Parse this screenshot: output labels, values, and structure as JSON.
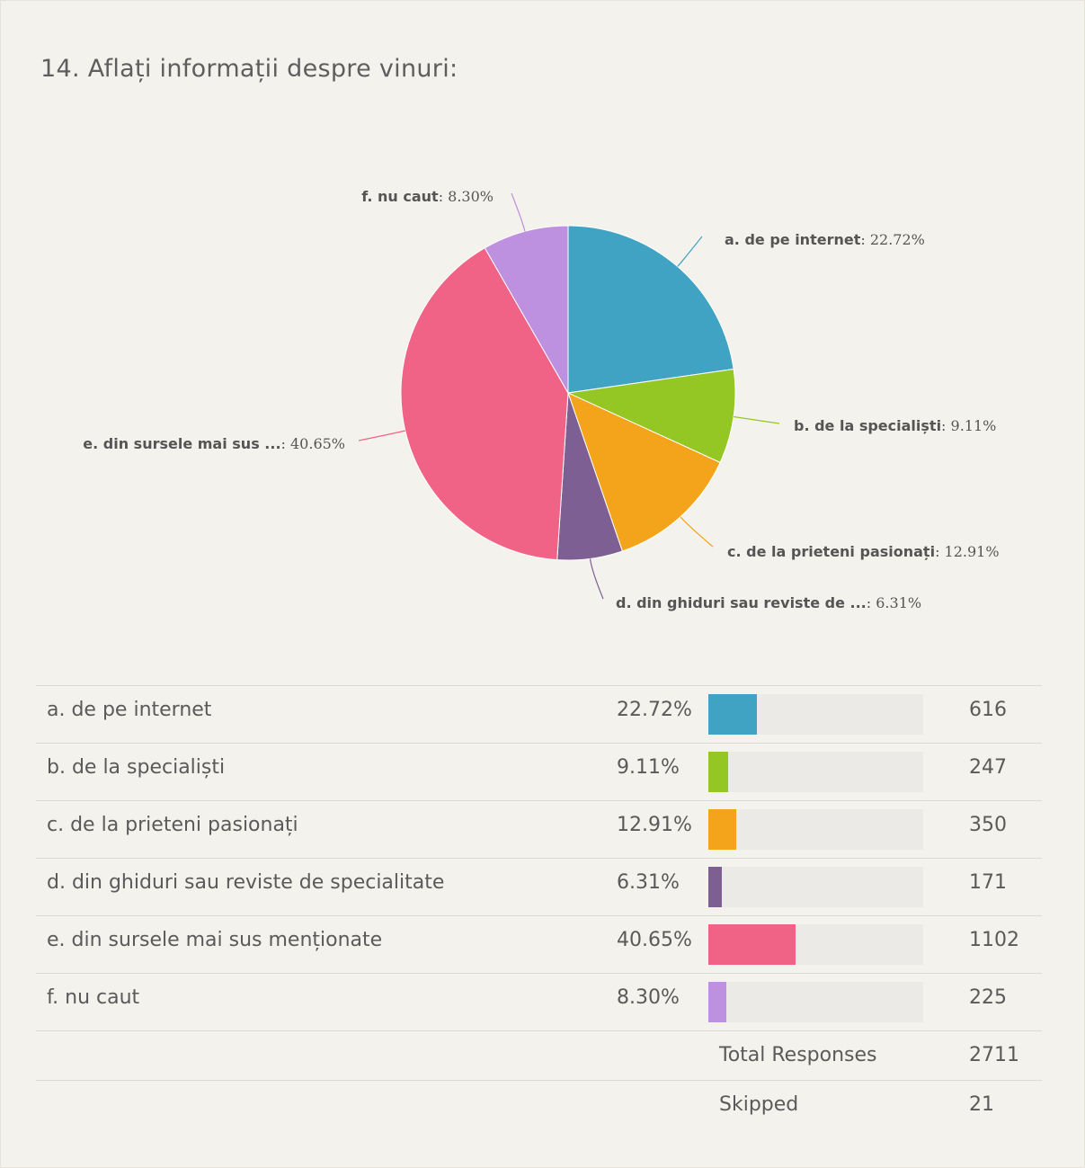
{
  "title": "14. Aflați informații despre vinuri:",
  "chart_data": {
    "type": "pie",
    "slices": [
      {
        "label": "a. de pe internet",
        "short_label": "a. de pe internet",
        "percent": 22.72,
        "pct_text": "22.72%",
        "count": 616,
        "color": "#41a3c4"
      },
      {
        "label": "b. de la specialiști",
        "short_label": "b. de la specialiști",
        "percent": 9.11,
        "pct_text": "9.11%",
        "count": 247,
        "color": "#94c624"
      },
      {
        "label": "c. de la prieteni pasionați",
        "short_label": "c. de la prieteni pasionați",
        "percent": 12.91,
        "pct_text": "12.91%",
        "count": 350,
        "color": "#f4a41a"
      },
      {
        "label": "d. din ghiduri sau reviste de specialitate",
        "short_label": "d. din ghiduri sau reviste de ...",
        "percent": 6.31,
        "pct_text": "6.31%",
        "count": 171,
        "color": "#7e5f93"
      },
      {
        "label": "e. din sursele mai sus menționate",
        "short_label": "e. din sursele mai sus ...",
        "percent": 40.65,
        "pct_text": "40.65%",
        "count": 1102,
        "color": "#f06386"
      },
      {
        "label": "f. nu caut",
        "short_label": "f. nu caut",
        "percent": 8.3,
        "pct_text": "8.30%",
        "count": 225,
        "color": "#bd90e0"
      }
    ]
  },
  "summary": {
    "total_label": "Total Responses",
    "total_value": "2711",
    "skipped_label": "Skipped",
    "skipped_value": "21"
  }
}
